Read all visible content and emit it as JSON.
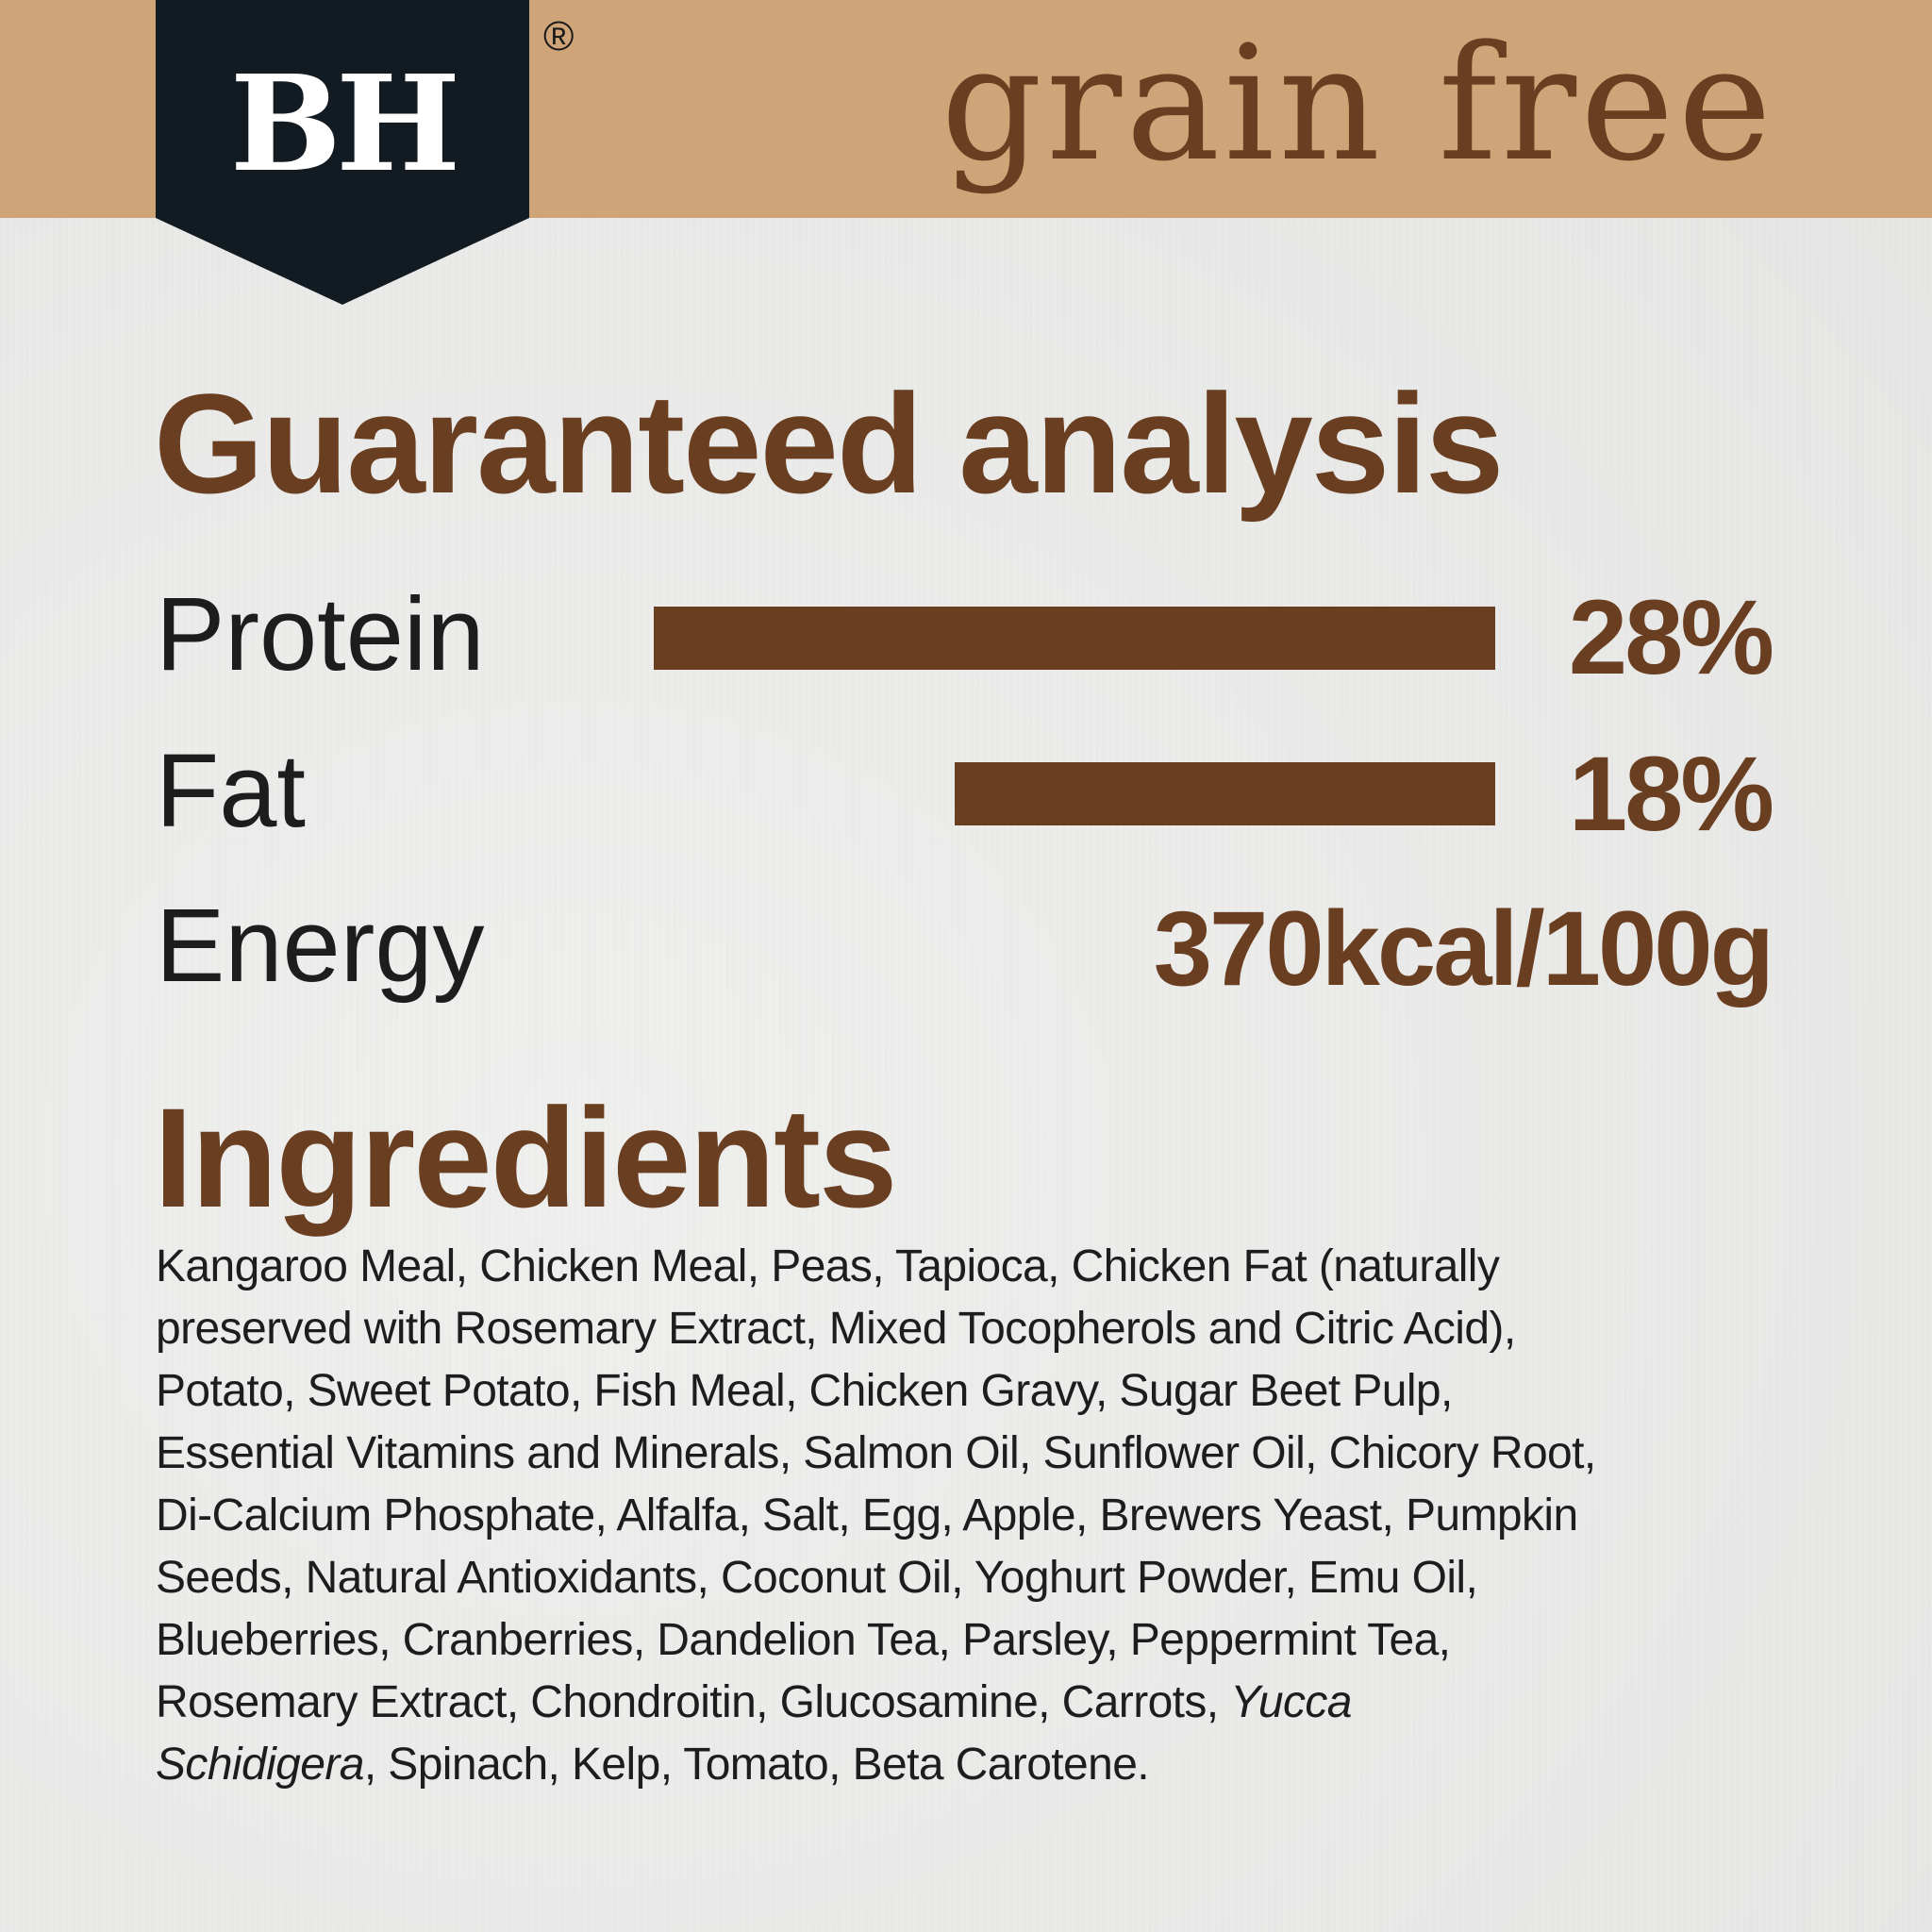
{
  "colors": {
    "band": "#cfa478",
    "brown": "#6a3f21",
    "badge": "#121a22",
    "text": "#1d1d1d"
  },
  "brand": {
    "logo_text": "BH",
    "registered": "®",
    "tagline": "grain free"
  },
  "analysis": {
    "title": "Guaranteed analysis",
    "rows": [
      {
        "label": "Protein",
        "value": "28%",
        "percent": 28
      },
      {
        "label": "Fat",
        "value": "18%",
        "percent": 18
      },
      {
        "label": "Energy",
        "value": "370kcal/100g"
      }
    ]
  },
  "ingredients": {
    "title": "Ingredients",
    "lines": [
      [
        {
          "t": "Kangaroo Meal, Chicken Meal, Peas, Tapioca, Chicken Fat (naturally"
        }
      ],
      [
        {
          "t": "preserved with Rosemary Extract, Mixed Tocopherols and Citric Acid),"
        }
      ],
      [
        {
          "t": "Potato, Sweet Potato, Fish Meal, Chicken Gravy, Sugar Beet Pulp,"
        }
      ],
      [
        {
          "t": "Essential Vitamins and Minerals, Salmon Oil, Sunflower Oil, Chicory Root,"
        }
      ],
      [
        {
          "t": "Di-Calcium Phosphate, Alfalfa, Salt, Egg, Apple, Brewers Yeast, Pumpkin"
        }
      ],
      [
        {
          "t": "Seeds, Natural Antioxidants, Coconut Oil, Yoghurt Powder, Emu Oil,"
        }
      ],
      [
        {
          "t": "Blueberries, Cranberries, Dandelion Tea, Parsley, Peppermint Tea,"
        }
      ],
      [
        {
          "t": "Rosemary Extract, Chondroitin, Glucosamine, Carrots, "
        },
        {
          "t": "Yucca",
          "i": true
        }
      ],
      [
        {
          "t": "Schidigera",
          "i": true
        },
        {
          "t": ", Spinach, Kelp, Tomato, Beta Carotene."
        }
      ]
    ]
  }
}
